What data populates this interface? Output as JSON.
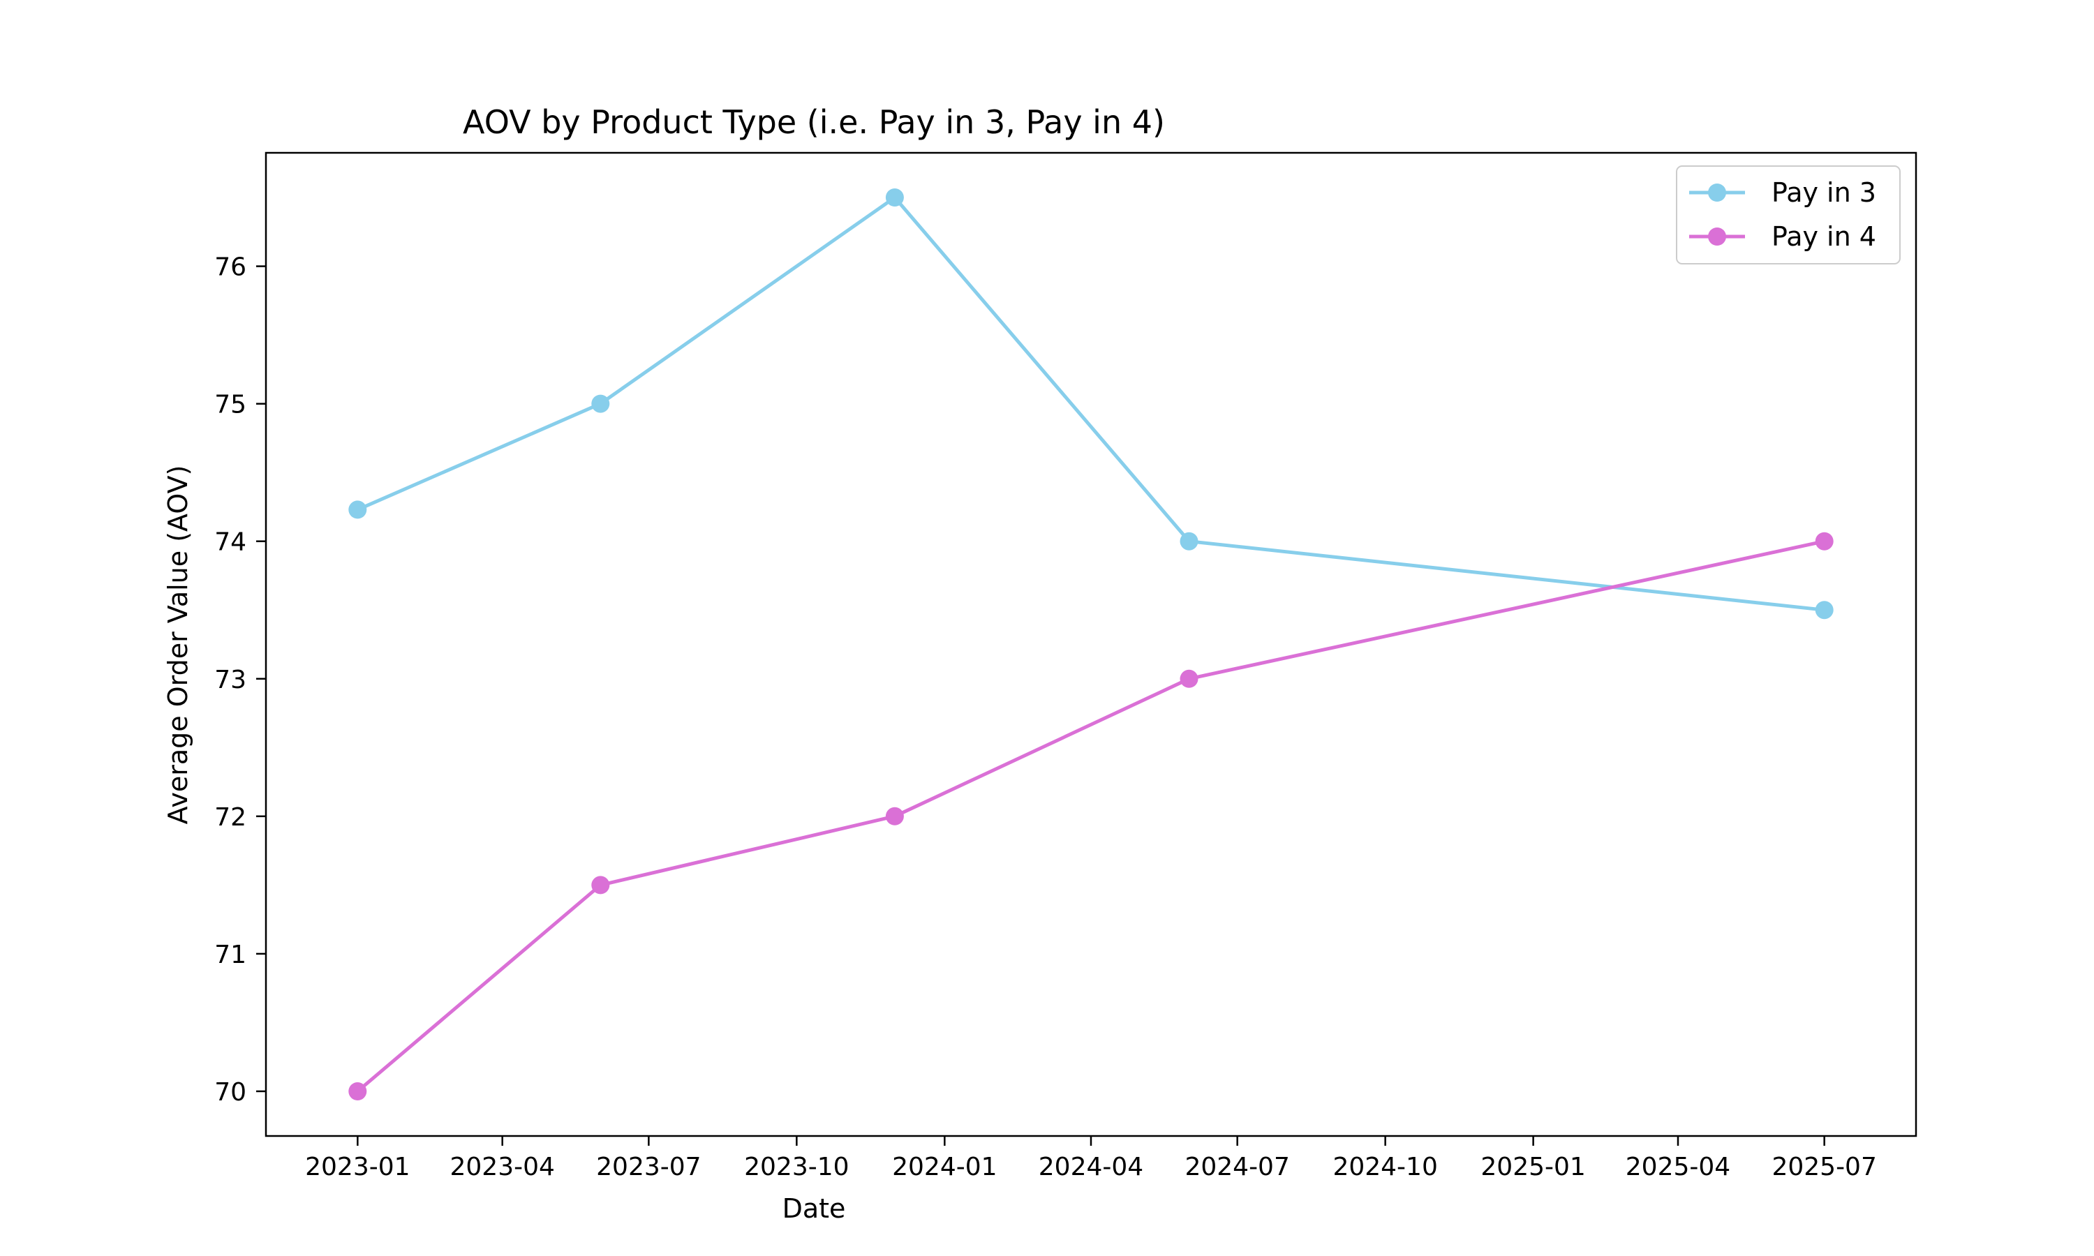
{
  "chart_data": {
    "type": "line",
    "title": "AOV by Product Type (i.e. Pay in 3, Pay in 4)",
    "xlabel": "Date",
    "ylabel": "Average Order Value (AOV)",
    "x": [
      "2023-01-01",
      "2023-06-01",
      "2023-12-01",
      "2024-06-01",
      "2025-07-01"
    ],
    "series": [
      {
        "name": "Pay in 3",
        "color": "#87CEEB",
        "values": [
          74.23,
          75.0,
          76.5,
          74.0,
          73.5
        ]
      },
      {
        "name": "Pay in 4",
        "color": "#DA70D6",
        "values": [
          70.0,
          71.5,
          72.0,
          73.0,
          74.0
        ]
      }
    ],
    "x_ticks": [
      "2023-01",
      "2023-04",
      "2023-07",
      "2023-10",
      "2024-01",
      "2024-04",
      "2024-07",
      "2024-10",
      "2025-01",
      "2025-04",
      "2025-07"
    ],
    "y_ticks": [
      70,
      71,
      72,
      73,
      74,
      75,
      76
    ],
    "xlim": [
      "2022-11-05",
      "2025-08-27"
    ],
    "ylim": [
      69.675,
      76.825
    ],
    "grid": false,
    "legend_position": "top-right"
  }
}
